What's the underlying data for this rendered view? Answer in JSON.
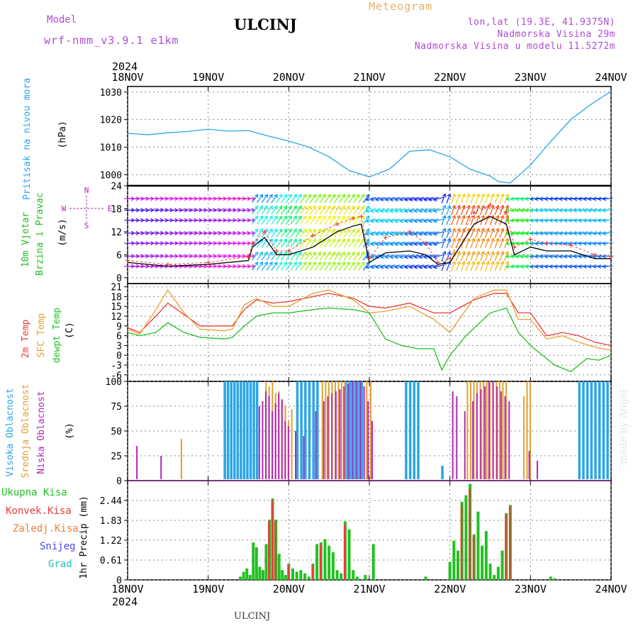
{
  "header": {
    "model_label": "Model",
    "model_name": "wrf-nmm_v3.9.1 e1km",
    "title": "ULCINJ",
    "meteogram_label": "Meteogram",
    "coords": "lon,lat (19.3E, 41.9375N)",
    "altitude": "Nadmorska Visina 29m",
    "model_altitude": "Nadmorska Visina u modelu 11.5272m"
  },
  "footer": {
    "station": "ULCINJ",
    "credit": "made by Angel"
  },
  "colors": {
    "pressure": "#2aa5e8",
    "temp2m": "#ee3a3a",
    "sfc": "#e8a030",
    "dewpt": "#22c022",
    "wind_speed": "#000000",
    "gust": "#ee3a3a",
    "high_cloud": "#2aa5e8",
    "mid_cloud": "#e0a030",
    "low_cloud": "#b428b4",
    "rain": "#22c022",
    "conv": "#ee3a3a",
    "frz": "#f08030",
    "snow": "#4a4ae8",
    "hail": "#22c0c0"
  },
  "chart_data": [
    {
      "type": "line",
      "title": "",
      "ylabel": [
        "Pritisak na nivou mora",
        "(hPa)"
      ],
      "x_labels": [
        "18NOV",
        "19NOV",
        "20NOV",
        "21NOV",
        "22NOV",
        "23NOV",
        "24NOV"
      ],
      "year": "2024",
      "yticks": [
        1000,
        1010,
        1020,
        1030
      ],
      "ylim": [
        996,
        1032
      ],
      "series": [
        {
          "key": "pressure",
          "x": [
            0,
            0.25,
            0.5,
            0.75,
            1.0,
            1.25,
            1.5,
            1.75,
            2.0,
            2.25,
            2.5,
            2.75,
            3.0,
            3.25,
            3.5,
            3.75,
            4.0,
            4.25,
            4.5,
            4.6,
            4.75,
            5.0,
            5.25,
            5.5,
            5.75,
            6.0
          ],
          "y": [
            1015,
            1014.5,
            1015.2,
            1015.7,
            1016.5,
            1015.8,
            1016,
            1014,
            1012.2,
            1010,
            1006.5,
            1001.5,
            999.2,
            1002,
            1008.5,
            1009,
            1006.5,
            1002,
            999.5,
            997.5,
            997,
            1003.5,
            1012,
            1020,
            1025.5,
            1030.3
          ]
        }
      ]
    },
    {
      "type": "line",
      "ylabel": [
        "10m Vjetar",
        "Brzina i Pravac",
        "(m/s)"
      ],
      "direction_key": [
        "N",
        "S",
        "W",
        "E"
      ],
      "yticks": [
        0,
        6,
        12,
        18,
        24
      ],
      "ylim": [
        -1.5,
        24
      ],
      "series": [
        {
          "key": "wind_speed",
          "x": [
            0,
            0.5,
            1.0,
            1.5,
            1.55,
            1.7,
            1.85,
            2.0,
            2.3,
            2.6,
            2.8,
            2.9,
            3.0,
            3.2,
            3.5,
            3.7,
            3.85,
            4.0,
            4.3,
            4.5,
            4.7,
            4.8,
            5.0,
            5.2,
            5.5,
            5.8,
            6.0
          ],
          "y": [
            4,
            3,
            3.5,
            4.5,
            8,
            10.5,
            6,
            6,
            8,
            12,
            13.5,
            14,
            4,
            6.5,
            7,
            6,
            3.5,
            4,
            14,
            16,
            14,
            6,
            8,
            7,
            7,
            5,
            5
          ]
        },
        {
          "key": "gust",
          "x": [
            0,
            0.5,
            1.0,
            1.5,
            1.55,
            1.7,
            1.85,
            2.0,
            2.3,
            2.6,
            2.8,
            2.9,
            3.0,
            3.2,
            3.5,
            3.7,
            3.85,
            4.0,
            4.3,
            4.5,
            4.7,
            4.8,
            5.0,
            5.2,
            5.5,
            5.8,
            6.0
          ],
          "y": [
            4.5,
            3.5,
            4,
            5.5,
            9,
            12,
            7,
            7,
            11,
            14,
            15.5,
            16,
            5,
            10.5,
            12,
            9,
            4,
            5,
            17,
            19,
            17,
            8,
            10,
            9,
            8.5,
            6,
            5.5
          ]
        }
      ]
    },
    {
      "type": "line",
      "ylabel": [
        "2m Temp",
        "SFC Temp",
        "dewpt Temp",
        "(C)"
      ],
      "yticks": [
        -6,
        -3,
        0,
        3,
        6,
        9,
        12,
        15,
        18,
        21
      ],
      "ylim": [
        -8,
        22
      ],
      "series": [
        {
          "key": "temp2m",
          "x": [
            0,
            0.15,
            0.35,
            0.5,
            0.7,
            0.9,
            1.2,
            1.3,
            1.45,
            1.6,
            1.8,
            2.0,
            2.3,
            2.5,
            2.8,
            3.0,
            3.2,
            3.5,
            3.8,
            4.0,
            4.3,
            4.55,
            4.7,
            4.85,
            5.0,
            5.2,
            5.4,
            5.6,
            5.8,
            6.0
          ],
          "y": [
            8.5,
            7,
            12,
            16,
            12.5,
            9,
            9,
            9,
            14,
            17,
            16,
            16.5,
            18,
            19,
            17.5,
            15,
            14.5,
            16,
            13,
            13,
            17,
            19,
            19,
            13,
            13,
            6,
            7,
            6,
            4,
            3
          ]
        },
        {
          "key": "sfc",
          "x": [
            0,
            0.15,
            0.35,
            0.5,
            0.7,
            0.9,
            1.2,
            1.3,
            1.45,
            1.6,
            1.8,
            2.0,
            2.3,
            2.5,
            2.8,
            3.0,
            3.2,
            3.5,
            3.8,
            4.0,
            4.3,
            4.55,
            4.7,
            4.85,
            5.0,
            5.2,
            5.4,
            5.6,
            5.8,
            6.0
          ],
          "y": [
            8,
            6.5,
            14,
            20,
            13,
            8,
            7.5,
            8,
            15.5,
            17.5,
            15,
            15,
            19,
            20,
            17,
            13,
            13.5,
            15,
            11,
            7,
            17.5,
            20,
            20,
            11,
            11,
            5,
            6,
            4,
            2.5,
            1.5
          ]
        },
        {
          "key": "dewpt",
          "x": [
            0,
            0.15,
            0.35,
            0.5,
            0.7,
            0.9,
            1.2,
            1.3,
            1.45,
            1.6,
            1.8,
            2.0,
            2.3,
            2.5,
            2.8,
            3.0,
            3.2,
            3.4,
            3.6,
            3.8,
            3.9,
            4.0,
            4.2,
            4.5,
            4.7,
            4.85,
            5.0,
            5.1,
            5.3,
            5.5,
            5.7,
            5.85,
            6.0
          ],
          "y": [
            7,
            6,
            7,
            10,
            7,
            5.5,
            5,
            5.5,
            9,
            12,
            13,
            13,
            14,
            14.5,
            14,
            13,
            5,
            3,
            2,
            2,
            -4.5,
            0,
            6,
            13,
            14.5,
            7,
            3,
            1,
            -3,
            -5,
            -1,
            -1.5,
            0
          ]
        }
      ]
    },
    {
      "type": "bar",
      "ylabel": [
        "Visoka Oblacnost",
        "Srednja Oblacnost",
        "Niska Oblacnost",
        "(%)"
      ],
      "yticks": [
        0,
        25,
        50,
        75,
        100
      ],
      "ylim": [
        0,
        100
      ],
      "series": [
        {
          "key": "high_cloud",
          "x": [
            1.2,
            1.24,
            1.28,
            1.32,
            1.36,
            1.4,
            1.44,
            1.48,
            1.52,
            1.56,
            1.6,
            2.1,
            2.15,
            2.2,
            2.25,
            2.3,
            2.35,
            2.7,
            2.75,
            2.8,
            2.85,
            2.9,
            3.45,
            3.5,
            3.55,
            3.6,
            3.9,
            5.6,
            5.65,
            5.7,
            5.75,
            5.8,
            5.85,
            5.9,
            5.95
          ],
          "y": [
            100,
            100,
            100,
            100,
            100,
            100,
            100,
            100,
            100,
            100,
            100,
            100,
            100,
            100,
            100,
            100,
            100,
            100,
            100,
            100,
            100,
            100,
            100,
            100,
            100,
            100,
            15,
            100,
            100,
            100,
            100,
            100,
            100,
            100,
            100
          ]
        },
        {
          "key": "mid_cloud",
          "x": [
            0.65,
            1.7,
            1.74,
            1.78,
            1.82,
            1.86,
            1.9,
            1.94,
            1.98,
            2.02,
            2.4,
            2.44,
            2.48,
            2.52,
            2.56,
            2.6,
            2.64,
            2.68,
            2.95,
            3.0,
            4.2,
            4.24,
            4.28,
            4.32,
            4.36,
            4.4,
            4.44,
            4.48,
            4.52,
            4.56,
            4.6,
            4.64,
            4.68,
            4.9,
            4.94,
            4.98
          ],
          "y": [
            42,
            100,
            95,
            100,
            88,
            90,
            80,
            76,
            60,
            72,
            100,
            100,
            100,
            100,
            100,
            100,
            100,
            100,
            100,
            100,
            100,
            100,
            100,
            100,
            100,
            100,
            100,
            100,
            100,
            100,
            100,
            100,
            100,
            85,
            100,
            100
          ]
        },
        {
          "key": "low_cloud",
          "x": [
            0.08,
            0.38,
            1.6,
            1.64,
            1.68,
            1.72,
            1.76,
            1.8,
            1.84,
            1.88,
            1.92,
            1.96,
            2.05,
            2.15,
            2.3,
            2.4,
            2.45,
            2.5,
            2.55,
            2.6,
            2.65,
            2.7,
            2.75,
            2.8,
            2.85,
            2.9,
            2.95,
            3.0,
            4.0,
            4.05,
            4.15,
            4.25,
            4.3,
            4.35,
            4.4,
            4.45,
            4.5,
            4.55,
            4.6,
            4.65,
            4.7,
            4.95,
            5.05
          ],
          "y": [
            35,
            25,
            75,
            80,
            90,
            85,
            70,
            78,
            88,
            82,
            60,
            55,
            50,
            45,
            70,
            80,
            85,
            88,
            90,
            92,
            95,
            98,
            100,
            100,
            100,
            95,
            80,
            60,
            90,
            85,
            70,
            80,
            88,
            92,
            95,
            100,
            100,
            95,
            90,
            85,
            80,
            30,
            20
          ]
        }
      ]
    },
    {
      "type": "bar",
      "ylabel": [
        "1hr Precip",
        "(mm)"
      ],
      "legend": [
        "Ukupna Kisa",
        "Konvek.Kisa",
        "Zaledj.Kisa",
        "Snijeg",
        "Grad"
      ],
      "yticks": [
        0,
        0.61,
        1.22,
        1.83,
        2.44
      ],
      "ylim": [
        0,
        3.05
      ],
      "series": [
        {
          "key": "rain",
          "x": [
            1.4,
            1.44,
            1.48,
            1.52,
            1.56,
            1.6,
            1.64,
            1.68,
            1.72,
            1.76,
            1.8,
            1.84,
            1.88,
            1.92,
            1.96,
            2.0,
            2.05,
            2.1,
            2.15,
            2.2,
            2.25,
            2.3,
            2.35,
            2.4,
            2.45,
            2.5,
            2.55,
            2.6,
            2.65,
            2.7,
            2.75,
            2.8,
            2.85,
            2.95,
            3.05,
            3.7,
            4.0,
            4.05,
            4.1,
            4.15,
            4.2,
            4.25,
            4.3,
            4.35,
            4.4,
            4.45,
            4.5,
            4.55,
            4.6,
            4.65,
            4.7,
            4.75,
            5.25,
            5.3
          ],
          "y": [
            0.1,
            0.25,
            0.35,
            0.15,
            1.15,
            1.0,
            0.4,
            0.3,
            1.1,
            1.85,
            2.5,
            1.85,
            0.8,
            0.3,
            0.15,
            0.5,
            0.35,
            0.25,
            0.3,
            0.2,
            0.1,
            0.5,
            1.1,
            1.15,
            1.25,
            1.05,
            0.85,
            0.3,
            0.2,
            1.8,
            1.55,
            0.3,
            0.1,
            0.15,
            1.1,
            0.1,
            0.55,
            1.2,
            0.9,
            2.4,
            2.6,
            2.95,
            1.4,
            2.1,
            1.05,
            1.5,
            0.5,
            0.15,
            0.4,
            0.9,
            2.05,
            2.3,
            0.1,
            0.05
          ]
        },
        {
          "key": "conv",
          "x": [
            1.76,
            1.8,
            1.84,
            2.0,
            2.3,
            2.4,
            2.7,
            4.15,
            4.25,
            4.3,
            4.7,
            4.75
          ],
          "y": [
            1.8,
            2.45,
            1.8,
            0.45,
            0.45,
            1.1,
            1.7,
            2.3,
            2.8,
            1.35,
            2.0,
            2.25
          ]
        }
      ]
    }
  ]
}
